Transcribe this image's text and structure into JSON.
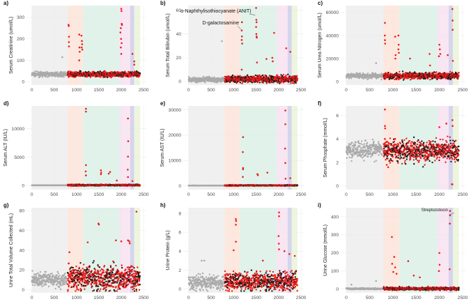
{
  "chart_data": {
    "type": "scatter",
    "xlim": [
      0,
      2500
    ],
    "xticks": [
      0,
      500,
      1000,
      1500,
      2000,
      2500
    ],
    "regions": [
      {
        "from": 0,
        "to": 800,
        "color": "#ececec"
      },
      {
        "from": 800,
        "to": 1140,
        "color": "#fbe2d6"
      },
      {
        "from": 1140,
        "to": 1960,
        "color": "#d9efe6"
      },
      {
        "from": 1960,
        "to": 2200,
        "color": "#f6e0ef"
      },
      {
        "from": 2200,
        "to": 2290,
        "color": "#cccbe8"
      },
      {
        "from": 2290,
        "to": 2420,
        "color": "#e9f3d6"
      }
    ],
    "series_colors": {
      "control": "#aaaaaa",
      "treated": "#ee1c1c",
      "vehicle": "#1a1a1a"
    },
    "panels": [
      {
        "label": "a)",
        "ylabel": "Serum Creatinine (umol/L)",
        "ylim": [
          -15,
          355
        ],
        "yticks": [
          0,
          100,
          200,
          300
        ],
        "control": [
          35,
          5
        ],
        "treated": [
          35,
          6
        ],
        "spikes": [
          [
            820,
            265
          ],
          [
            825,
            260
          ],
          [
            830,
            210
          ],
          [
            828,
            185
          ],
          [
            830,
            165
          ],
          [
            1060,
            220
          ],
          [
            1065,
            160
          ],
          [
            1070,
            140
          ],
          [
            1060,
            100
          ],
          [
            1110,
            215
          ],
          [
            1120,
            190
          ],
          [
            1125,
            175
          ],
          [
            1115,
            160
          ],
          [
            1130,
            150
          ],
          [
            1980,
            230
          ],
          [
            1990,
            250
          ],
          [
            1995,
            200
          ],
          [
            2000,
            340
          ],
          [
            2005,
            330
          ],
          [
            2010,
            270
          ],
          [
            2015,
            265
          ],
          [
            2008,
            180
          ],
          [
            1990,
            160
          ],
          [
            2000,
            130
          ],
          [
            2250,
            130
          ],
          [
            2290,
            95
          ],
          [
            2290,
            80
          ],
          [
            680,
            115
          ]
        ],
        "annotations": []
      },
      {
        "label": "b)",
        "ylabel": "Serum Total Bilirubin (umol/L)",
        "ylim": [
          -3,
          64
        ],
        "yticks": [
          0,
          20,
          40,
          60
        ],
        "control": [
          1.5,
          1
        ],
        "treated": [
          2,
          1.5
        ],
        "spikes": [
          [
            1180,
            43
          ],
          [
            1185,
            38
          ],
          [
            1180,
            35
          ],
          [
            1190,
            32
          ],
          [
            1185,
            50
          ],
          [
            1500,
            62
          ],
          [
            1505,
            52
          ],
          [
            1510,
            50
          ],
          [
            1500,
            46
          ],
          [
            1505,
            40
          ],
          [
            1510,
            38
          ],
          [
            1515,
            37
          ],
          [
            1900,
            41
          ],
          [
            2170,
            28
          ],
          [
            2260,
            25
          ],
          [
            1860,
            20
          ],
          [
            1730,
            19
          ],
          [
            1180,
            10
          ],
          [
            1520,
            16
          ],
          [
            1870,
            17
          ],
          [
            740,
            34
          ]
        ],
        "annotations": [
          {
            "text": "α-Naphthylisothiocyanate (ANIT)",
            "x": 1480,
            "y": 56,
            "tx": 1390,
            "ty": 58
          },
          {
            "text": "D-galactosamine",
            "x": 1160,
            "y": 44,
            "tx": 1120,
            "ty": 48
          }
        ]
      },
      {
        "label": "c)",
        "ylabel": "Serum Urea Nitrogen (umol/L)",
        "ylim": [
          -3000,
          66000
        ],
        "yticks": [
          0,
          20000,
          40000,
          60000
        ],
        "control": [
          5000,
          1200
        ],
        "treated": [
          5000,
          1400
        ],
        "spikes": [
          [
            830,
            51000
          ],
          [
            828,
            40000
          ],
          [
            830,
            36000
          ],
          [
            835,
            33000
          ],
          [
            1050,
            39000
          ],
          [
            1060,
            23000
          ],
          [
            1055,
            20000
          ],
          [
            1120,
            40000
          ],
          [
            1125,
            32000
          ],
          [
            1120,
            28000
          ],
          [
            1130,
            25000
          ],
          [
            1370,
            20000
          ],
          [
            1790,
            24000
          ],
          [
            1800,
            14000
          ],
          [
            2000,
            32000
          ],
          [
            2010,
            28000
          ],
          [
            2020,
            24000
          ],
          [
            1990,
            22000
          ],
          [
            2180,
            23000
          ],
          [
            2280,
            63000
          ],
          [
            2285,
            53000
          ],
          [
            2285,
            45000
          ],
          [
            2290,
            18000
          ],
          [
            640,
            16000
          ]
        ],
        "annotations": []
      },
      {
        "label": "d)",
        "ylabel": "Serum ALT (IU/L)",
        "ylim": [
          -700,
          14000
        ],
        "yticks": [
          0,
          5000,
          10000
        ],
        "control": [
          50,
          10
        ],
        "treated": [
          80,
          60
        ],
        "spikes": [
          [
            1210,
            13500
          ],
          [
            1210,
            13000
          ],
          [
            1210,
            3600
          ],
          [
            1205,
            2500
          ],
          [
            1210,
            1800
          ],
          [
            1545,
            2700
          ],
          [
            1550,
            2300
          ],
          [
            1545,
            2000
          ],
          [
            1720,
            2100
          ],
          [
            1750,
            2400
          ],
          [
            2150,
            11800
          ],
          [
            2155,
            7800
          ],
          [
            2150,
            5100
          ],
          [
            2145,
            2800
          ],
          [
            2150,
            1500
          ],
          [
            1900,
            900
          ],
          [
            2250,
            800
          ]
        ],
        "annotations": []
      },
      {
        "label": "e)",
        "ylabel": "Serum AST (IU/L)",
        "ylim": [
          -1500,
          31500
        ],
        "yticks": [
          0,
          10000,
          20000,
          30000
        ],
        "control": [
          100,
          20
        ],
        "treated": [
          150,
          100
        ],
        "spikes": [
          [
            1210,
            19200
          ],
          [
            1205,
            13300
          ],
          [
            1210,
            7000
          ],
          [
            1210,
            6500
          ],
          [
            1205,
            3500
          ],
          [
            1530,
            4600
          ],
          [
            1540,
            4200
          ],
          [
            1750,
            5200
          ],
          [
            2150,
            29700
          ],
          [
            2150,
            24300
          ],
          [
            2145,
            14700
          ],
          [
            2150,
            9000
          ],
          [
            2155,
            2800
          ],
          [
            2260,
            3000
          ]
        ],
        "annotations": []
      },
      {
        "label": "f)",
        "ylabel": "Serum Phosphate (mmol/L)",
        "ylim": [
          -0.3,
          6.8
        ],
        "yticks": [
          0,
          2,
          4,
          6
        ],
        "control": [
          3.1,
          0.35
        ],
        "treated": [
          3.0,
          0.45
        ],
        "spikes": [
          [
            830,
            6.5
          ],
          [
            830,
            5.1
          ],
          [
            835,
            4.9
          ],
          [
            830,
            4.0
          ],
          [
            1050,
            4.0
          ],
          [
            2000,
            5.0
          ],
          [
            2150,
            5.3
          ],
          [
            2280,
            5.6
          ],
          [
            2285,
            5.1
          ],
          [
            2270,
            0.15
          ],
          [
            2280,
            0.15
          ],
          [
            900,
            1.6
          ],
          [
            870,
            1.8
          ]
        ],
        "annotations": []
      },
      {
        "label": "g)",
        "ylabel": "Urine Total Volume Collected (mL)",
        "ylim": [
          -3,
          83
        ],
        "yticks": [
          0,
          20,
          40,
          60,
          80
        ],
        "control": [
          10,
          3.5
        ],
        "treated": [
          12,
          6
        ],
        "spikes": [
          [
            1490,
            67
          ],
          [
            1500,
            66
          ],
          [
            2340,
            79
          ],
          [
            1250,
            48
          ],
          [
            1880,
            50
          ],
          [
            2000,
            49
          ],
          [
            2150,
            50
          ],
          [
            2180,
            49
          ],
          [
            2190,
            47
          ],
          [
            840,
            38
          ]
        ],
        "annotations": []
      },
      {
        "label": "h)",
        "ylabel": "Urine Protein (g/L)",
        "ylim": [
          -0.4,
          8.6
        ],
        "yticks": [
          0,
          2,
          4,
          6,
          8
        ],
        "control": [
          0.7,
          0.4
        ],
        "treated": [
          0.8,
          0.5
        ],
        "spikes": [
          [
            1050,
            7.4
          ],
          [
            1055,
            7.2
          ],
          [
            1050,
            6.8
          ],
          [
            1050,
            5.0
          ],
          [
            2010,
            8.1
          ],
          [
            2010,
            7.7
          ],
          [
            2000,
            5.6
          ],
          [
            2005,
            4.8
          ],
          [
            2010,
            4.2
          ],
          [
            1650,
            3.0
          ],
          [
            2360,
            3.5
          ],
          [
            2240,
            3.7
          ],
          [
            290,
            3.0
          ],
          [
            350,
            3.0
          ],
          [
            1000,
            4.1
          ],
          [
            2130,
            4.0
          ]
        ],
        "annotations": []
      },
      {
        "label": "i)",
        "ylabel": "Urine Glucose (mmol/L)",
        "ylim": [
          -20,
          450
        ],
        "yticks": [
          0,
          100,
          200,
          300,
          400
        ],
        "control": [
          2,
          2
        ],
        "treated": [
          3,
          4
        ],
        "spikes": [
          [
            980,
            288
          ],
          [
            1030,
            178
          ],
          [
            985,
            140
          ],
          [
            1010,
            95
          ],
          [
            1050,
            120
          ],
          [
            1080,
            85
          ],
          [
            1330,
            155
          ],
          [
            2000,
            200
          ],
          [
            2005,
            135
          ],
          [
            1990,
            100
          ],
          [
            2230,
            432
          ],
          [
            2230,
            408
          ],
          [
            2225,
            362
          ],
          [
            2220,
            110
          ],
          [
            1450,
            75
          ],
          [
            1580,
            65
          ],
          [
            110,
            25
          ],
          [
            640,
            45
          ]
        ],
        "annotations": [
          {
            "text": "Streptozotocin",
            "x": 2215,
            "y": 410,
            "tx": 1900,
            "ty": 430
          }
        ]
      }
    ]
  }
}
